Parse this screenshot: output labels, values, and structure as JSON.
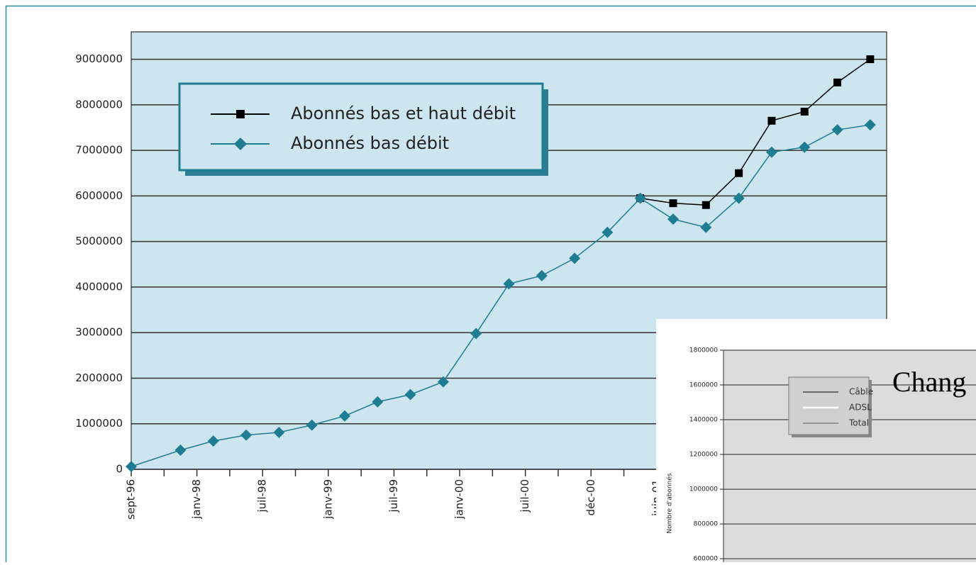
{
  "chart_data": [
    {
      "type": "line",
      "xlim": [
        0,
        23
      ],
      "xticks": [
        {
          "value": 0,
          "label": "sept-96"
        },
        1,
        {
          "value": 2,
          "label": "janv-98"
        },
        3,
        {
          "value": 4,
          "label": "juil-98"
        },
        5,
        {
          "value": 6,
          "label": "janv-99"
        },
        7,
        {
          "value": 8,
          "label": "juil-99"
        },
        9,
        {
          "value": 10,
          "label": "janv-00"
        },
        11,
        {
          "value": 12,
          "label": "juil-00"
        },
        13,
        {
          "value": 14,
          "label": "déc-00"
        },
        15,
        {
          "value": 16,
          "label": "juin-01"
        },
        17,
        18,
        19,
        20,
        21,
        22
      ],
      "x": [
        0,
        1.5,
        2.5,
        3.5,
        4.5,
        5.5,
        6.5,
        7.5,
        8.5,
        9.5,
        10.5,
        11.5,
        12.5,
        13.5,
        14.5,
        15.5,
        16.5,
        17.5,
        18.5,
        19.5,
        20.5,
        21.5,
        22.5
      ],
      "ylim": [
        0,
        9600000
      ],
      "yticks": [
        0,
        1000000,
        2000000,
        3000000,
        4000000,
        5000000,
        6000000,
        7000000,
        8000000,
        9000000
      ],
      "grid": true,
      "series": [
        {
          "name": "Abonnés bas et haut débit",
          "color": "#000000",
          "marker": "square",
          "values": [
            null,
            null,
            null,
            null,
            null,
            null,
            null,
            null,
            null,
            null,
            null,
            null,
            null,
            null,
            null,
            5950000,
            5840000,
            5800000,
            6500000,
            7650000,
            7850000,
            8490000,
            9000000
          ]
        },
        {
          "name": "Abonnés bas débit",
          "color": "#1e7d92",
          "marker": "diamond",
          "values": [
            60000,
            420000,
            620000,
            750000,
            810000,
            970000,
            1170000,
            1480000,
            1640000,
            1920000,
            2980000,
            4070000,
            4250000,
            4630000,
            5200000,
            5950000,
            5490000,
            5310000,
            5950000,
            6960000,
            7070000,
            7450000,
            7560000
          ]
        }
      ]
    },
    {
      "type": "line",
      "title": "Chang",
      "y_label": "Nombre d'abonnés",
      "ylim": [
        580000,
        1800000
      ],
      "yticks": [
        600000,
        800000,
        1000000,
        1200000,
        1400000,
        1600000,
        1800000
      ],
      "grid": true,
      "series": [
        {
          "name": "Câble",
          "color": "#000000"
        },
        {
          "name": "ADSL",
          "color": "#ffffff"
        },
        {
          "name": "Total",
          "color": "#555555"
        }
      ]
    }
  ]
}
